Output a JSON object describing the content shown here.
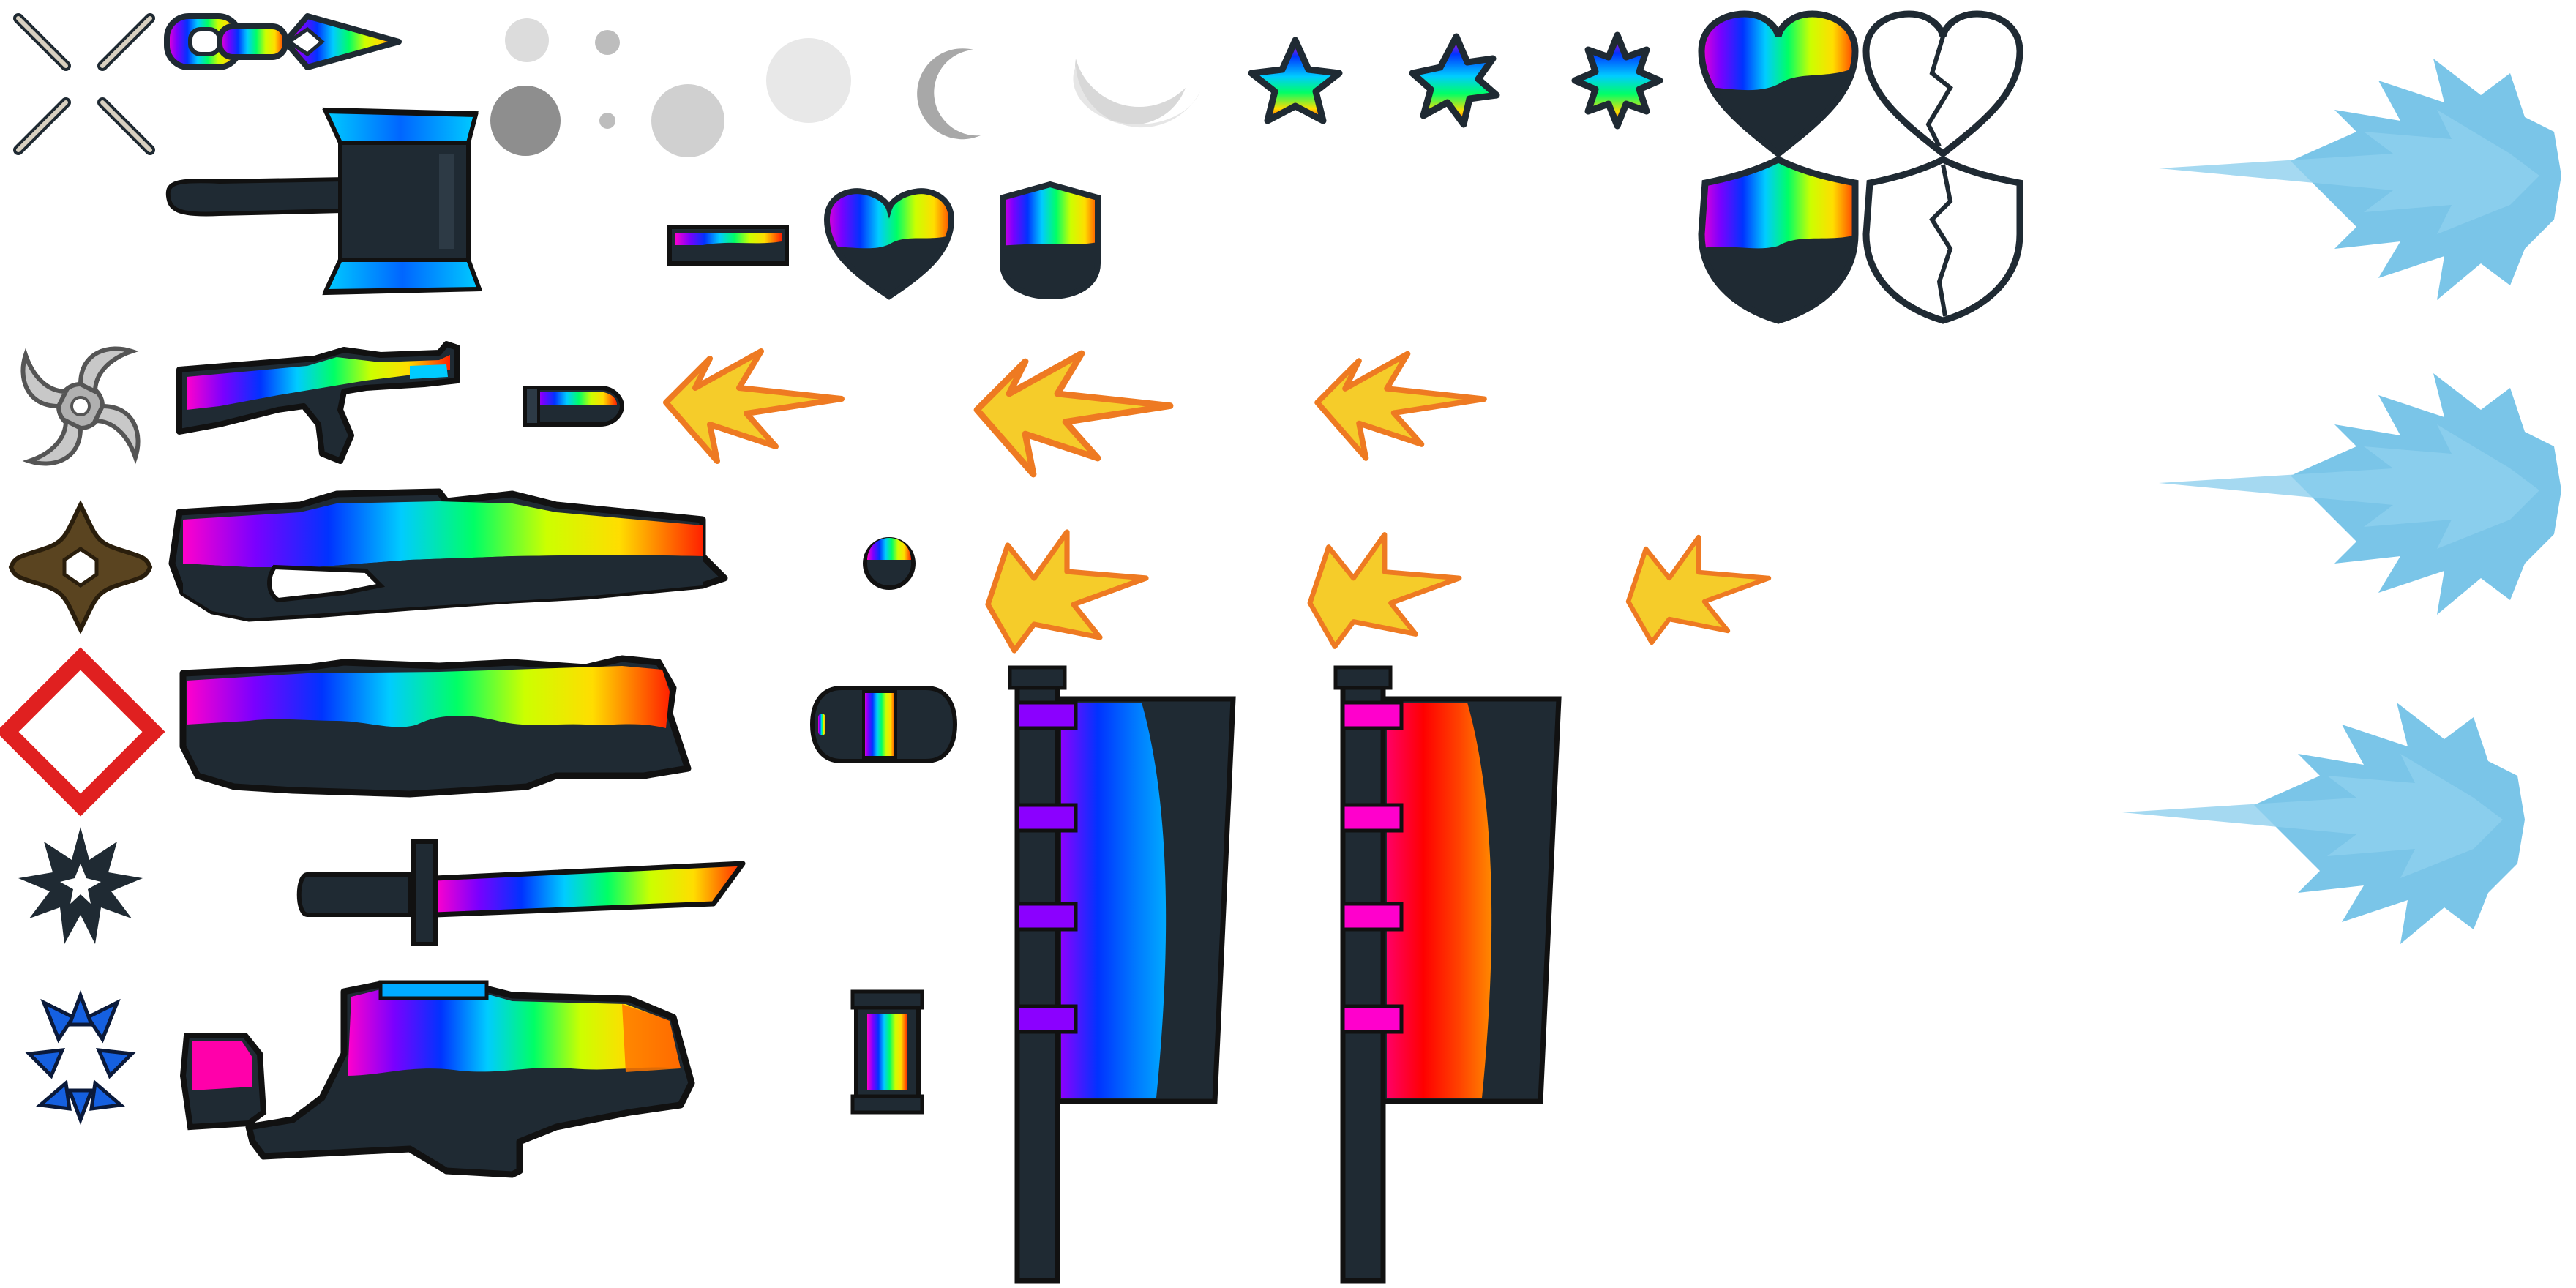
{
  "sheet": {
    "background": "#ffffff",
    "outline_color": "#1f2a33",
    "body_color": "#1f2a33",
    "rainbow_stops": [
      "#ff00cc",
      "#7a00ff",
      "#0033ff",
      "#00ccff",
      "#00ff66",
      "#ccff00",
      "#ffdd00",
      "#ff2200"
    ],
    "blue_gradient": [
      "#8b00ff",
      "#0033ff",
      "#0066ff",
      "#00aaff"
    ],
    "red_gradient": [
      "#ff0066",
      "#ff0000",
      "#ff4400",
      "#ff8800"
    ],
    "muzzle_flash_colors": {
      "fill": "#f5cc2a",
      "stroke": "#ee7a22"
    },
    "energy_burst_color": "#6bbfe6",
    "particle_gray": [
      "#d8d8d8",
      "#bdbdbd",
      "#8e8e8e"
    ],
    "sprites": [
      {
        "name": "crosshair-corners-icon"
      },
      {
        "name": "chain-spear-sprite"
      },
      {
        "name": "smoke-particle-sprites"
      },
      {
        "name": "moon-crescent-sprites"
      },
      {
        "name": "star-badge-icons"
      },
      {
        "name": "heart-full-icon"
      },
      {
        "name": "heart-broken-icon"
      },
      {
        "name": "shield-full-icon"
      },
      {
        "name": "shield-broken-icon"
      },
      {
        "name": "hammer-sprite"
      },
      {
        "name": "health-bar-sprite"
      },
      {
        "name": "mini-heart-icon"
      },
      {
        "name": "mini-shield-icon"
      },
      {
        "name": "shuriken-icon"
      },
      {
        "name": "assault-rifle-sprite"
      },
      {
        "name": "rifle-bullet-sprite"
      },
      {
        "name": "muzzle-flash-sprites"
      },
      {
        "name": "cross-emblem-icon"
      },
      {
        "name": "heavy-blaster-sprite"
      },
      {
        "name": "orb-projectile-sprite"
      },
      {
        "name": "diamond-warning-icon"
      },
      {
        "name": "shotgun-sprite"
      },
      {
        "name": "capsule-ammo-sprite"
      },
      {
        "name": "blue-banner-flag-sprite"
      },
      {
        "name": "red-banner-flag-sprite"
      },
      {
        "name": "spiky-burst-icon"
      },
      {
        "name": "katana-sprite"
      },
      {
        "name": "blue-shards-icon"
      },
      {
        "name": "laser-cannon-sprite"
      },
      {
        "name": "cell-battery-sprite"
      },
      {
        "name": "energy-burst-sprites"
      }
    ]
  }
}
